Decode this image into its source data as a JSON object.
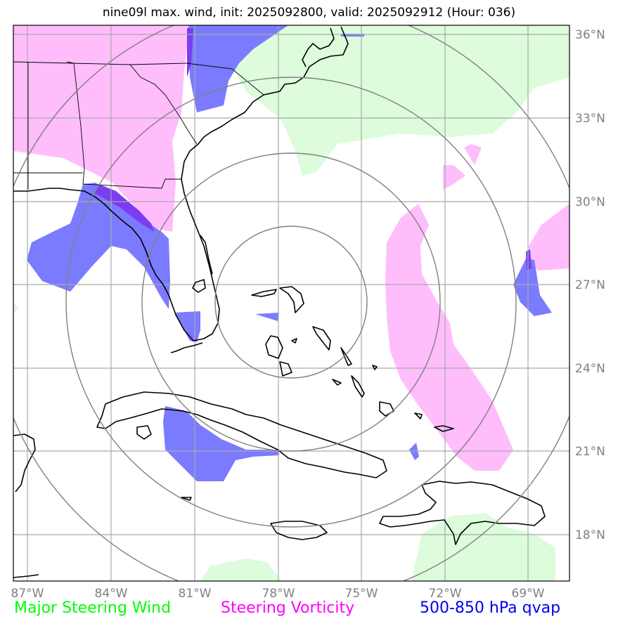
{
  "title": "nine09l max. wind, init: 2025092800, valid: 2025092912 (Hour: 036)",
  "lon_labels": [
    "87°W",
    "84°W",
    "81°W",
    "78°W",
    "75°W",
    "72°W",
    "69°W"
  ],
  "lat_labels": [
    "36°N",
    "33°N",
    "30°N",
    "27°N",
    "24°N",
    "21°N",
    "18°N"
  ],
  "legend": {
    "wind": "Major Steering Wind",
    "vorticity": "Steering Vorticity",
    "qvap": "500-850 hPa qvap"
  },
  "colors": {
    "wind": "#00ff00",
    "vorticity": "#ff00ff",
    "qvap": "#0000ee",
    "wind_fill": "#dcfcdc",
    "vort_fill": "#ffbdfc",
    "qvap_fill": "#7b7bff",
    "overlap_fill": "#7b3df0",
    "grid": "#a9a9a9",
    "rings": "#808080"
  }
}
